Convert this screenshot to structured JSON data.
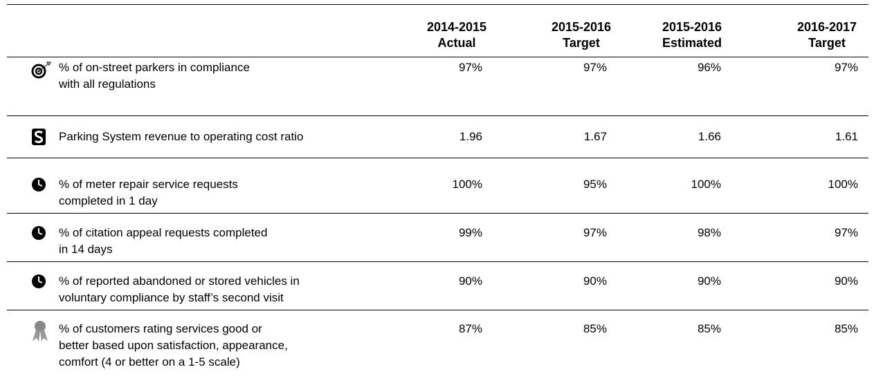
{
  "table": {
    "columns": [
      [
        "2014-2015",
        "Actual"
      ],
      [
        "2015-2016",
        "Target"
      ],
      [
        "2015-2016",
        "Estimated"
      ],
      [
        "2016-2017",
        "Target"
      ]
    ],
    "rows": [
      {
        "description": [
          "% of on-street parkers in compliance",
          "with all regulations"
        ],
        "values": [
          "97%",
          "97%",
          "96%",
          "97%"
        ]
      },
      {
        "description": [
          "Parking System revenue to operating cost ratio"
        ],
        "values": [
          "1.96",
          "1.67",
          "1.66",
          "1.61"
        ]
      },
      {
        "description": [
          "% of meter repair service requests",
          "completed in 1 day"
        ],
        "values": [
          "100%",
          "95%",
          "100%",
          "100%"
        ]
      },
      {
        "description": [
          "% of citation appeal requests completed",
          "in 14 days"
        ],
        "values": [
          "99%",
          "97%",
          "98%",
          "97%"
        ]
      },
      {
        "description": [
          "% of reported abandoned or stored vehicles in",
          "voluntary compliance by staff’s second visit"
        ],
        "values": [
          "90%",
          "90%",
          "90%",
          "90%"
        ]
      },
      {
        "description": [
          "% of customers rating services good or",
          "better based upon satisfaction, appearance,",
          "comfort (4 or better on a 1-5 scale)"
        ],
        "values": [
          "87%",
          "85%",
          "85%",
          "85%"
        ]
      }
    ]
  }
}
